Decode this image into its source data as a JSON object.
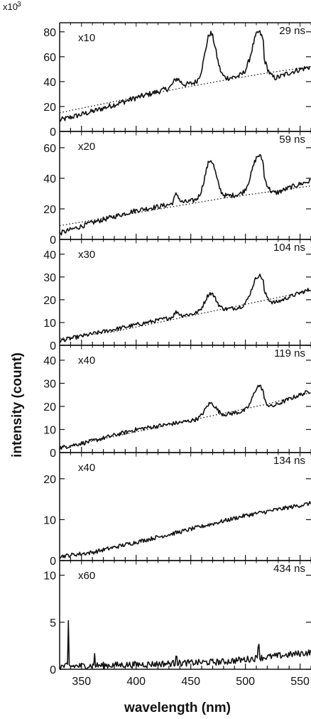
{
  "chart_data": {
    "type": "line",
    "xlabel": "wavelength (nm)",
    "ylabel": "intensity (count)",
    "y_multiplier_label": "x10",
    "y_multiplier_exponent": "3",
    "xlim": [
      330,
      560
    ],
    "x_ticks": [
      350,
      400,
      450,
      500,
      550
    ],
    "x_tick_labels": [
      "350",
      "400",
      "450",
      "500",
      "550"
    ],
    "panels": [
      {
        "scale_label": "x10",
        "time_label": "29 ns",
        "ylim": [
          0,
          85
        ],
        "y_ticks": [
          0,
          20,
          40,
          60,
          80
        ],
        "y_tick_labels": [
          "0",
          "20",
          "40",
          "60",
          "80"
        ],
        "base": [
          [
            330,
            9
          ],
          [
            360,
            16
          ],
          [
            400,
            27
          ],
          [
            440,
            37
          ],
          [
            500,
            45
          ],
          [
            560,
            53
          ]
        ],
        "fit": [
          [
            330,
            15
          ],
          [
            380,
            24
          ],
          [
            430,
            33
          ],
          [
            480,
            41
          ],
          [
            520,
            47
          ],
          [
            560,
            52
          ]
        ],
        "peaks": [
          [
            437,
            6,
            3
          ],
          [
            468,
            38,
            5
          ],
          [
            512,
            33,
            6
          ]
        ],
        "steps": [
          [
            517,
            -12
          ]
        ],
        "noise": 2.2,
        "spikes": []
      },
      {
        "scale_label": "x20",
        "time_label": "59 ns",
        "ylim": [
          0,
          66
        ],
        "y_ticks": [
          0,
          20,
          40,
          60
        ],
        "y_tick_labels": [
          "0",
          "20",
          "40",
          "60"
        ],
        "base": [
          [
            330,
            4
          ],
          [
            360,
            11
          ],
          [
            400,
            19
          ],
          [
            440,
            24
          ],
          [
            500,
            30
          ],
          [
            560,
            39
          ]
        ],
        "fit": [
          [
            330,
            9
          ],
          [
            380,
            15
          ],
          [
            430,
            21
          ],
          [
            480,
            27
          ],
          [
            520,
            31
          ],
          [
            560,
            35
          ]
        ],
        "peaks": [
          [
            437,
            6,
            2
          ],
          [
            468,
            25,
            5
          ],
          [
            512,
            23,
            6
          ]
        ],
        "steps": [
          [
            517,
            -8
          ]
        ],
        "noise": 1.6,
        "spikes": []
      },
      {
        "scale_label": "x30",
        "time_label": "104 ns",
        "ylim": [
          0,
          44
        ],
        "y_ticks": [
          0,
          10,
          20,
          30,
          40
        ],
        "y_tick_labels": [
          "0",
          "10",
          "20",
          "30",
          "40"
        ],
        "base": [
          [
            330,
            2
          ],
          [
            360,
            5
          ],
          [
            400,
            9
          ],
          [
            440,
            13
          ],
          [
            500,
            17
          ],
          [
            560,
            25
          ]
        ],
        "fit": [
          [
            330,
            3
          ],
          [
            380,
            6
          ],
          [
            430,
            11
          ],
          [
            480,
            16
          ],
          [
            520,
            20
          ],
          [
            560,
            24
          ]
        ],
        "peaks": [
          [
            437,
            2,
            2
          ],
          [
            468,
            8,
            5
          ],
          [
            512,
            12,
            6
          ]
        ],
        "steps": [
          [
            517,
            -4
          ]
        ],
        "noise": 0.9,
        "spikes": []
      },
      {
        "scale_label": "x40",
        "time_label": "119 ns",
        "ylim": [
          0,
          44
        ],
        "y_ticks": [
          0,
          10,
          20,
          30,
          40
        ],
        "y_tick_labels": [
          "0",
          "10",
          "20",
          "30",
          "40"
        ],
        "base": [
          [
            330,
            2
          ],
          [
            360,
            5
          ],
          [
            400,
            10
          ],
          [
            440,
            13
          ],
          [
            500,
            18
          ],
          [
            560,
            27
          ]
        ],
        "fit": [
          [
            330,
            2
          ],
          [
            380,
            7
          ],
          [
            430,
            12
          ],
          [
            480,
            17
          ],
          [
            520,
            21
          ],
          [
            560,
            26
          ]
        ],
        "peaks": [
          [
            468,
            6,
            5
          ],
          [
            512,
            9,
            5
          ]
        ],
        "steps": [
          [
            517,
            -3
          ]
        ],
        "noise": 0.9,
        "spikes": []
      },
      {
        "scale_label": "x40",
        "time_label": "134 ns",
        "ylim": [
          0,
          25
        ],
        "y_ticks": [
          0,
          10,
          20
        ],
        "y_tick_labels": [
          "0",
          "10",
          "20"
        ],
        "base": [
          [
            330,
            1
          ],
          [
            360,
            2
          ],
          [
            400,
            4.5
          ],
          [
            440,
            7
          ],
          [
            500,
            11
          ],
          [
            560,
            14
          ]
        ],
        "fit": [],
        "peaks": [],
        "steps": [],
        "noise": 0.5,
        "spikes": []
      },
      {
        "scale_label": "x60",
        "time_label": "434 ns",
        "ylim": [
          0,
          10.5
        ],
        "y_ticks": [
          0,
          5,
          10
        ],
        "y_tick_labels": [
          "0",
          "5",
          "10"
        ],
        "base": [
          [
            330,
            0.3
          ],
          [
            400,
            0.5
          ],
          [
            480,
            0.8
          ],
          [
            560,
            1.8
          ]
        ],
        "fit": [],
        "peaks": [],
        "steps": [],
        "noise": 0.35,
        "spikes": [
          [
            338,
            4.7
          ],
          [
            362,
            1.3
          ],
          [
            437,
            1.0
          ],
          [
            512,
            1.5
          ]
        ]
      }
    ]
  }
}
